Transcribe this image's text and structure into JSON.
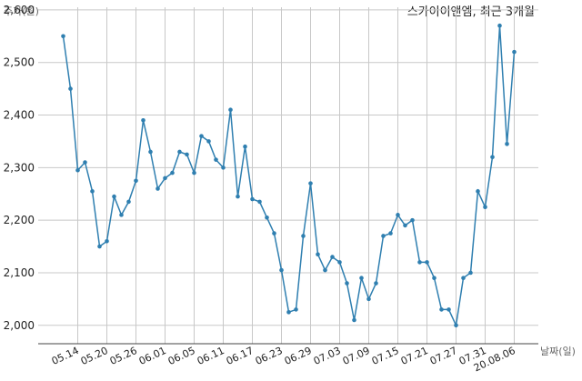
{
  "chart_data": {
    "type": "line",
    "title": "스카이이앤엠, 최근 3개월",
    "xlabel": "날짜(일)",
    "ylabel": "주가(원)",
    "ylim": [
      1965,
      2605
    ],
    "yticks": [
      2000,
      2100,
      2200,
      2300,
      2400,
      2500,
      2600
    ],
    "ytick_labels": [
      "2,000",
      "2,100",
      "2,200",
      "2,300",
      "2,400",
      "2,500",
      "2,600"
    ],
    "xtick_labels": [
      {
        "label": "05.14",
        "index": 2
      },
      {
        "label": "05.20",
        "index": 6
      },
      {
        "label": "05.26",
        "index": 10
      },
      {
        "label": "06.01",
        "index": 14
      },
      {
        "label": "06.05",
        "index": 18
      },
      {
        "label": "06.11",
        "index": 22
      },
      {
        "label": "06.17",
        "index": 26
      },
      {
        "label": "06.23",
        "index": 30
      },
      {
        "label": "06.29",
        "index": 34
      },
      {
        "label": "07.03",
        "index": 38
      },
      {
        "label": "07.09",
        "index": 42
      },
      {
        "label": "07.15",
        "index": 46
      },
      {
        "label": "07.21",
        "index": 50
      },
      {
        "label": "07.27",
        "index": 54
      },
      {
        "label": "07.31",
        "index": 58
      },
      {
        "label": "20.08.06",
        "index": 62
      }
    ],
    "grid": true,
    "series": [
      {
        "color": "#2f7fb0",
        "values": [
          2550,
          2450,
          2295,
          2310,
          2255,
          2150,
          2160,
          2245,
          2210,
          2235,
          2275,
          2390,
          2330,
          2260,
          2280,
          2290,
          2330,
          2325,
          2290,
          2360,
          2350,
          2315,
          2300,
          2410,
          2245,
          2340,
          2240,
          2235,
          2205,
          2175,
          2105,
          2025,
          2030,
          2170,
          2270,
          2135,
          2105,
          2130,
          2120,
          2080,
          2010,
          2090,
          2050,
          2080,
          2170,
          2175,
          2210,
          2190,
          2200,
          2120,
          2120,
          2090,
          2030,
          2030,
          2000,
          2090,
          2100,
          2255,
          2225,
          2320,
          2570,
          2345,
          2520
        ]
      }
    ]
  }
}
